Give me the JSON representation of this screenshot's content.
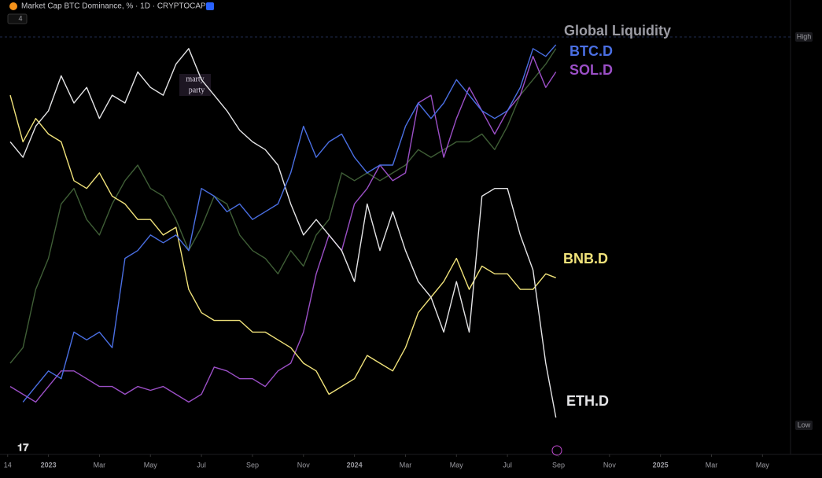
{
  "chart_data": {
    "type": "line",
    "title": "Market Cap BTC Dominance, % · 1D · CRYPTOCAP",
    "indicator_count": "4",
    "watermark": [
      "marty",
      "party"
    ],
    "x": [
      -1.5,
      -1,
      -0.5,
      0,
      0.5,
      1,
      1.5,
      2,
      2.5,
      3,
      3.5,
      4,
      4.5,
      5,
      5.5,
      6,
      6.5,
      7,
      7.5,
      8,
      8.5,
      9,
      9.5,
      10,
      10.5,
      11,
      11.5,
      12,
      12.5,
      13,
      13.5,
      14,
      14.5,
      15,
      15.5,
      16,
      16.5,
      17,
      17.5,
      18,
      18.5,
      19,
      19.5,
      19.9
    ],
    "xlim": [
      -1.9,
      29.1
    ],
    "xticks": [
      {
        "value": -1.6,
        "label": "14"
      },
      {
        "value": 0,
        "label": "2023"
      },
      {
        "value": 2,
        "label": "Mar"
      },
      {
        "value": 4,
        "label": "May"
      },
      {
        "value": 6,
        "label": "Jul"
      },
      {
        "value": 8,
        "label": "Sep"
      },
      {
        "value": 10,
        "label": "Nov"
      },
      {
        "value": 12,
        "label": "2024"
      },
      {
        "value": 14,
        "label": "Mar"
      },
      {
        "value": 16,
        "label": "May"
      },
      {
        "value": 18,
        "label": "Jul"
      },
      {
        "value": 20,
        "label": "Sep"
      },
      {
        "value": 22,
        "label": "Nov"
      },
      {
        "value": 24,
        "label": "2025"
      },
      {
        "value": 26,
        "label": "Mar"
      },
      {
        "value": 28,
        "label": "May"
      }
    ],
    "ylim": [
      0,
      100
    ],
    "yticks": [
      {
        "value": 100,
        "label": "High"
      },
      {
        "value": 0,
        "label": "Low"
      }
    ],
    "series": [
      {
        "name": "ETH.D",
        "color": "#e4e4e6",
        "values": [
          73,
          69,
          77,
          81,
          90,
          83,
          87,
          79,
          85,
          83,
          91,
          87,
          85,
          93,
          97,
          89,
          85,
          81,
          76,
          73,
          71,
          67,
          57,
          49,
          53,
          49,
          45,
          37,
          57,
          45,
          55,
          45,
          37,
          33,
          24,
          37,
          24,
          59,
          61,
          61,
          49,
          40,
          16,
          2
        ]
      },
      {
        "name": "BNB.D",
        "color": "#f0e27a",
        "values": [
          85,
          73,
          79,
          75,
          73,
          63,
          61,
          65,
          59,
          57,
          53,
          53,
          49,
          51,
          35,
          29,
          27,
          27,
          27,
          24,
          24,
          22,
          20,
          16,
          14,
          8,
          10,
          12,
          18,
          16,
          14,
          20,
          29,
          33,
          37,
          43,
          35,
          41,
          39,
          39,
          35,
          35,
          39,
          38
        ]
      },
      {
        "name": "Global Liquidity",
        "color": "#3f5e36",
        "values": [
          16,
          20,
          35,
          43,
          57,
          61,
          53,
          49,
          57,
          63,
          67,
          61,
          59,
          53,
          45,
          51,
          59,
          57,
          49,
          45,
          43,
          39,
          45,
          41,
          49,
          53,
          65,
          63,
          65,
          63,
          65,
          67,
          71,
          69,
          71,
          73,
          73,
          75,
          71,
          77,
          85,
          89,
          93,
          97
        ]
      },
      {
        "name": "BTC.D",
        "color": "#4a6fe3",
        "values": [
          null,
          6,
          10,
          14,
          12,
          24,
          22,
          24,
          20,
          43,
          45,
          49,
          47,
          49,
          45,
          61,
          59,
          55,
          57,
          53,
          55,
          57,
          65,
          77,
          69,
          73,
          75,
          69,
          65,
          67,
          67,
          77,
          83,
          79,
          83,
          89,
          85,
          81,
          79,
          81,
          87,
          97,
          95,
          98
        ]
      },
      {
        "name": "SOL.D",
        "color": "#9b4fc6",
        "values": [
          10,
          8,
          6,
          10,
          14,
          14,
          12,
          10,
          10,
          8,
          10,
          9,
          10,
          8,
          6,
          8,
          15,
          14,
          12,
          12,
          10,
          14,
          16,
          24,
          39,
          49,
          45,
          57,
          61,
          67,
          63,
          65,
          83,
          85,
          69,
          79,
          87,
          81,
          75,
          81,
          85,
          95,
          87,
          91
        ]
      }
    ]
  }
}
